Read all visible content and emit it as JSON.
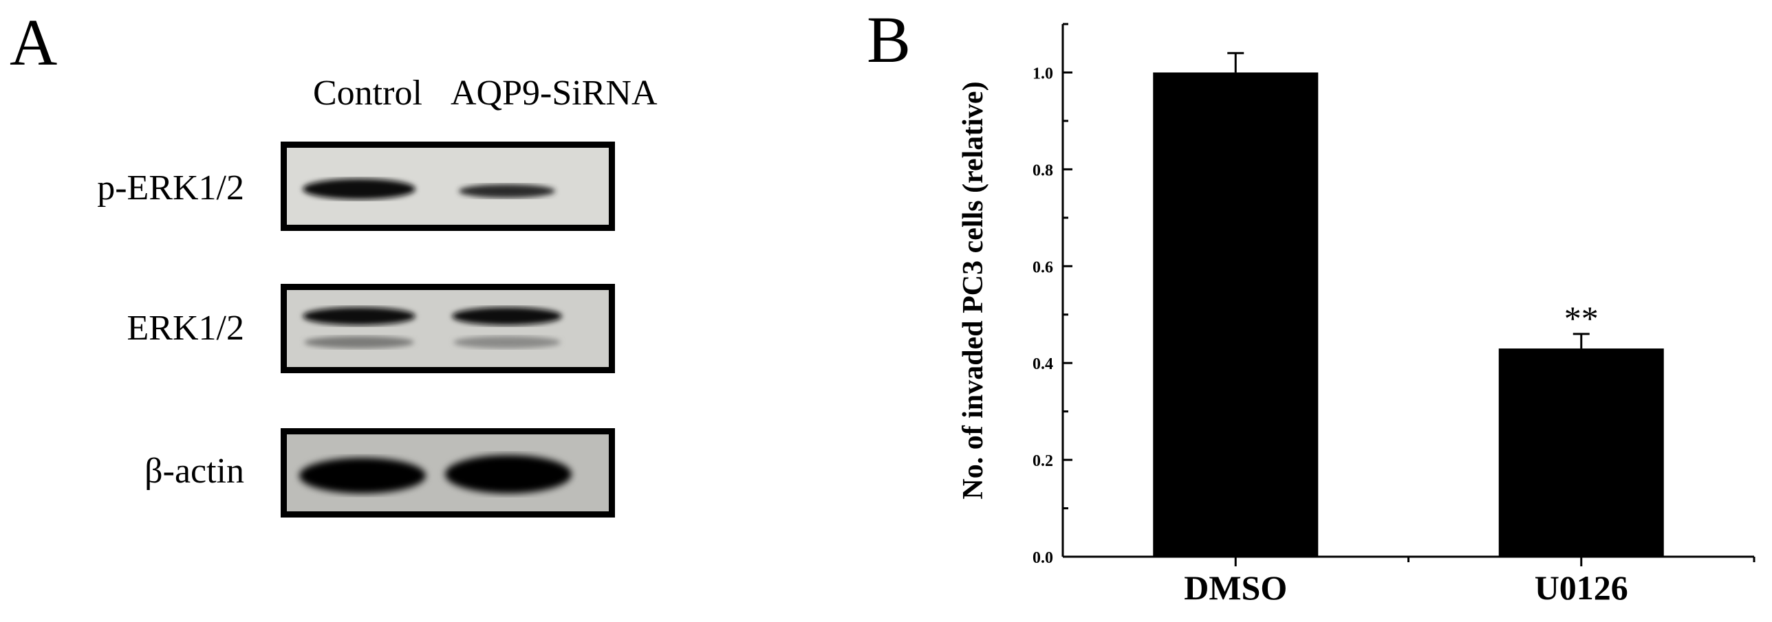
{
  "panel_a": {
    "letter": "A",
    "lanes": [
      "Control",
      "AQP9-SiRNA"
    ],
    "rows": [
      "p-ERK1/2",
      "ERK1/2",
      "β-actin"
    ]
  },
  "panel_b": {
    "letter": "B"
  },
  "chart_data": {
    "type": "bar",
    "categories": [
      "DMSO",
      "U0126"
    ],
    "values": [
      1.0,
      0.43
    ],
    "errors": [
      0.04,
      0.03
    ],
    "annotations": [
      "",
      "**"
    ],
    "ylabel": "No. of invaded PC3 cells (relative)",
    "xlabel": "",
    "ylim": [
      0.0,
      1.1
    ],
    "yticks": [
      0.0,
      0.2,
      0.4,
      0.6,
      0.8,
      1.0
    ],
    "ytick_labels": [
      "0.0",
      "0.2",
      "0.4",
      "0.6",
      "0.8",
      "1.0"
    ],
    "bar_color": "#000000",
    "grid": false,
    "legend": "none"
  }
}
